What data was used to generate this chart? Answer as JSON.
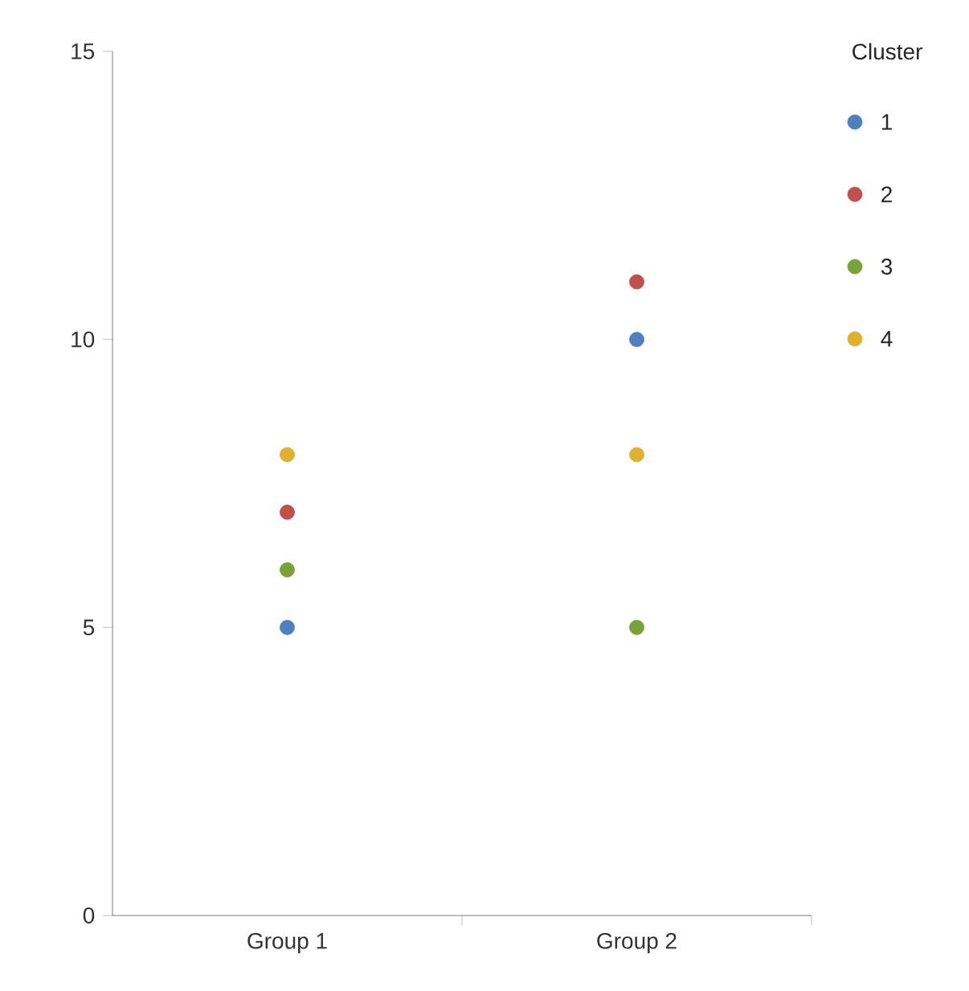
{
  "chart_data": {
    "type": "scatter",
    "categories": [
      "Group 1",
      "Group 2"
    ],
    "legend_title": "Cluster",
    "legend": "top right",
    "marker": "circle",
    "ylim": [
      0,
      15
    ],
    "yticks": [
      0,
      5,
      10,
      15
    ],
    "series": [
      {
        "name": "1",
        "color": "#4f7fbf",
        "values": [
          5,
          10
        ]
      },
      {
        "name": "2",
        "color": "#c0504d",
        "values": [
          7,
          11
        ]
      },
      {
        "name": "3",
        "color": "#7aa23a",
        "values": [
          6,
          5
        ]
      },
      {
        "name": "4",
        "color": "#e0b030",
        "values": [
          8,
          8
        ]
      }
    ]
  }
}
